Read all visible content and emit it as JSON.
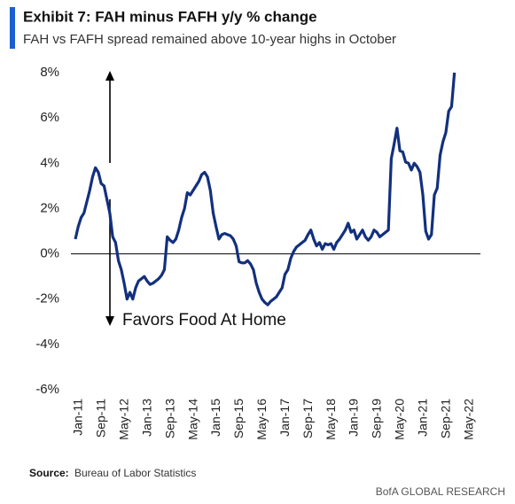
{
  "chart_data": {
    "type": "line",
    "title": "Exhibit 7: FAH minus FAFH y/y % change",
    "subtitle": "FAH vs FAFH spread remained above 10-year highs in October",
    "annotation": "Favors Food At Home",
    "source_label": "Source:",
    "source": "Bureau of Labor Statistics",
    "footer": "BofA GLOBAL RESEARCH",
    "categories": [
      "Jan-11",
      null,
      null,
      null,
      null,
      null,
      null,
      null,
      "Sep-11",
      null,
      null,
      null,
      null,
      null,
      null,
      null,
      "May-12",
      null,
      null,
      null,
      null,
      null,
      null,
      null,
      "Jan-13",
      null,
      null,
      null,
      null,
      null,
      null,
      null,
      "Sep-13",
      null,
      null,
      null,
      null,
      null,
      null,
      null,
      "May-14",
      null,
      null,
      null,
      null,
      null,
      null,
      null,
      "Jan-15",
      null,
      null,
      null,
      null,
      null,
      null,
      null,
      "Sep-15",
      null,
      null,
      null,
      null,
      null,
      null,
      null,
      "May-16",
      null,
      null,
      null,
      null,
      null,
      null,
      null,
      "Jan-17",
      null,
      null,
      null,
      null,
      null,
      null,
      null,
      "Sep-17",
      null,
      null,
      null,
      null,
      null,
      null,
      null,
      "May-18",
      null,
      null,
      null,
      null,
      null,
      null,
      null,
      "Jan-19",
      null,
      null,
      null,
      null,
      null,
      null,
      null,
      "Sep-19",
      null,
      null,
      null,
      null,
      null,
      null,
      null,
      "May-20",
      null,
      null,
      null,
      null,
      null,
      null,
      null,
      "Jan-21",
      null,
      null,
      null,
      null,
      null,
      null,
      null,
      "Sep-21",
      null,
      null,
      null,
      null,
      null,
      null,
      null,
      "May-22"
    ],
    "series": [
      {
        "name": "FAH minus FAFH",
        "color": "#13307e",
        "values": [
          0.65,
          1.2,
          1.6,
          1.8,
          2.3,
          2.8,
          3.4,
          3.8,
          3.6,
          3.1,
          3.0,
          2.4,
          1.8,
          0.75,
          0.5,
          -0.3,
          -0.7,
          -1.3,
          -2.0,
          -1.7,
          -2.0,
          -1.5,
          -1.2,
          -1.1,
          -1.0,
          -1.2,
          -1.35,
          -1.3,
          -1.2,
          -1.1,
          -0.95,
          -0.7,
          0.75,
          0.6,
          0.5,
          0.65,
          1.05,
          1.6,
          2.0,
          2.7,
          2.6,
          2.8,
          3.0,
          3.2,
          3.5,
          3.6,
          3.4,
          2.8,
          1.8,
          1.2,
          0.65,
          0.85,
          0.9,
          0.85,
          0.8,
          0.65,
          0.35,
          -0.35,
          -0.4,
          -0.4,
          -0.3,
          -0.45,
          -0.7,
          -1.3,
          -1.7,
          -2.0,
          -2.15,
          -2.25,
          -2.1,
          -2.0,
          -1.9,
          -1.7,
          -1.5,
          -0.9,
          -0.7,
          -0.2,
          0.1,
          0.3,
          0.4,
          0.5,
          0.6,
          0.85,
          1.05,
          0.65,
          0.35,
          0.5,
          0.2,
          0.45,
          0.4,
          0.45,
          0.2,
          0.5,
          0.65,
          0.85,
          1.05,
          1.35,
          0.95,
          1.05,
          0.65,
          0.85,
          1.05,
          0.75,
          0.6,
          0.75,
          1.05,
          0.95,
          0.75,
          0.85,
          0.95,
          1.05,
          4.2,
          4.85,
          5.55,
          4.55,
          4.5,
          4.05,
          4.0,
          3.7,
          4.0,
          3.85,
          3.6,
          2.6,
          1.0,
          0.65,
          0.85,
          2.6,
          2.9,
          4.35,
          4.95,
          5.35,
          6.3,
          6.5,
          8.0,
          null,
          null,
          null,
          null
        ]
      }
    ],
    "ylim": [
      -6,
      8
    ],
    "yticks": [
      {
        "value": -6,
        "label": "-6%"
      },
      {
        "value": -4,
        "label": "-4%"
      },
      {
        "value": -2,
        "label": "-2%"
      },
      {
        "value": 0,
        "label": "0%"
      },
      {
        "value": 2,
        "label": "2%"
      },
      {
        "value": 4,
        "label": "4%"
      },
      {
        "value": 6,
        "label": "6%"
      },
      {
        "value": 8,
        "label": "8%"
      }
    ]
  }
}
